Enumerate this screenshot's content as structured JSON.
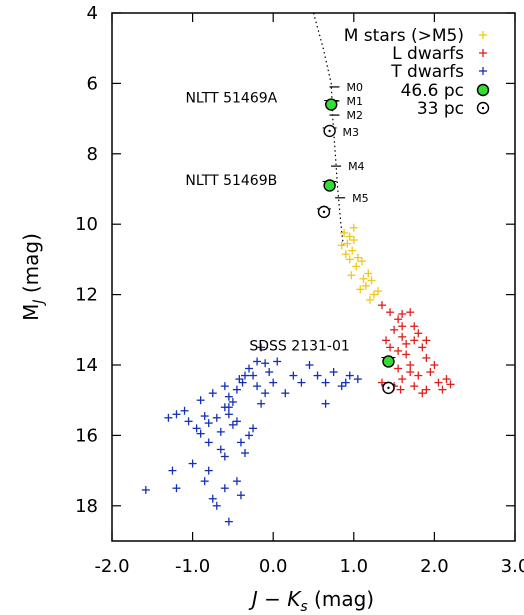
{
  "chart_data": {
    "type": "scatter",
    "xlabel": {
      "main": "J − K",
      "sub": "s",
      "tail": " (mag)"
    },
    "ylabel": {
      "main": "M",
      "sub": "J",
      "tail": " (mag)"
    },
    "xlim": [
      -2.0,
      3.0
    ],
    "ylim": [
      19.0,
      4.0
    ],
    "y_inverted": true,
    "xticks": [
      -2.0,
      -1.0,
      0.0,
      1.0,
      2.0,
      3.0
    ],
    "xtick_labels": [
      "-2.0",
      "-1.0",
      "0.0",
      "1.0",
      "2.0",
      "3.0"
    ],
    "yticks": [
      4,
      6,
      8,
      10,
      12,
      14,
      16,
      18
    ],
    "ytick_labels": [
      "4",
      "6",
      "8",
      "10",
      "12",
      "14",
      "16",
      "18"
    ],
    "grid": false,
    "legend_position": "top-right",
    "legend": [
      {
        "label": "M stars (>M5)",
        "marker": "plus",
        "color": "#f2c811"
      },
      {
        "label": "L dwarfs",
        "marker": "plus",
        "color": "#e0201b"
      },
      {
        "label": "T dwarfs",
        "marker": "plus",
        "color": "#1530b8"
      },
      {
        "label": "46.6 pc",
        "marker": "filled-circle",
        "color": "#33dd33"
      },
      {
        "label": "33 pc",
        "marker": "open-circle-dot",
        "color": "#000000"
      }
    ],
    "sequence_line": [
      [
        0.5,
        4.0
      ],
      [
        0.62,
        5.0
      ],
      [
        0.72,
        6.0
      ],
      [
        0.74,
        7.0
      ],
      [
        0.77,
        8.0
      ],
      [
        0.8,
        9.0
      ],
      [
        0.84,
        10.0
      ],
      [
        0.87,
        10.6
      ]
    ],
    "spectral_marks": [
      {
        "label": "M0",
        "x": 0.76,
        "y": 6.1
      },
      {
        "label": "M1",
        "x": 0.76,
        "y": 6.5
      },
      {
        "label": "M2",
        "x": 0.76,
        "y": 6.9
      },
      {
        "label": "M4",
        "x": 0.78,
        "y": 8.35
      },
      {
        "label": "M5",
        "x": 0.83,
        "y": 9.25
      }
    ],
    "series": [
      {
        "name": "M stars (>M5)",
        "color": "#f2c811",
        "points": [
          [
            0.88,
            10.25
          ],
          [
            0.92,
            10.55
          ],
          [
            0.95,
            10.35
          ],
          [
            0.98,
            10.75
          ],
          [
            1.0,
            10.45
          ],
          [
            0.9,
            10.85
          ],
          [
            0.85,
            10.6
          ],
          [
            1.05,
            10.95
          ],
          [
            1.03,
            11.2
          ],
          [
            0.97,
            11.45
          ],
          [
            1.1,
            11.05
          ],
          [
            1.12,
            11.55
          ],
          [
            1.18,
            11.4
          ],
          [
            1.15,
            11.75
          ],
          [
            1.22,
            11.6
          ],
          [
            1.08,
            11.85
          ],
          [
            1.25,
            12.0
          ],
          [
            1.2,
            12.15
          ],
          [
            1.3,
            11.9
          ],
          [
            1.0,
            10.1
          ],
          [
            0.95,
            11.0
          ]
        ]
      },
      {
        "name": "L dwarfs",
        "color": "#e0201b",
        "points": [
          [
            1.35,
            12.3
          ],
          [
            1.45,
            12.5
          ],
          [
            1.55,
            12.7
          ],
          [
            1.6,
            12.55
          ],
          [
            1.7,
            12.5
          ],
          [
            1.75,
            12.9
          ],
          [
            1.5,
            13.0
          ],
          [
            1.4,
            13.3
          ],
          [
            1.6,
            13.2
          ],
          [
            1.8,
            13.1
          ],
          [
            1.85,
            13.5
          ],
          [
            1.9,
            13.3
          ],
          [
            1.65,
            13.7
          ],
          [
            1.55,
            13.6
          ],
          [
            1.45,
            13.9
          ],
          [
            1.7,
            14.0
          ],
          [
            1.95,
            14.2
          ],
          [
            2.0,
            14.0
          ],
          [
            1.8,
            14.3
          ],
          [
            1.6,
            14.4
          ],
          [
            1.5,
            14.6
          ],
          [
            1.75,
            14.6
          ],
          [
            1.9,
            14.7
          ],
          [
            2.05,
            14.5
          ],
          [
            2.15,
            14.4
          ],
          [
            2.2,
            14.55
          ],
          [
            1.85,
            14.8
          ],
          [
            1.7,
            14.2
          ],
          [
            1.55,
            14.1
          ],
          [
            1.65,
            13.4
          ],
          [
            1.75,
            13.3
          ],
          [
            1.9,
            13.8
          ],
          [
            1.6,
            12.9
          ],
          [
            1.45,
            13.5
          ],
          [
            1.35,
            14.5
          ],
          [
            1.58,
            14.7
          ],
          [
            2.1,
            14.7
          ]
        ]
      },
      {
        "name": "T dwarfs",
        "color": "#1530b8",
        "points": [
          [
            -1.58,
            17.55
          ],
          [
            -1.25,
            17.0
          ],
          [
            -1.2,
            17.5
          ],
          [
            -1.0,
            16.8
          ],
          [
            -0.85,
            17.3
          ],
          [
            -0.8,
            17.0
          ],
          [
            -0.75,
            17.8
          ],
          [
            -0.7,
            18.0
          ],
          [
            -0.55,
            18.45
          ],
          [
            -0.6,
            17.5
          ],
          [
            -0.45,
            17.3
          ],
          [
            -0.4,
            17.7
          ],
          [
            -1.3,
            15.5
          ],
          [
            -1.2,
            15.4
          ],
          [
            -1.1,
            15.3
          ],
          [
            -1.05,
            15.6
          ],
          [
            -0.95,
            15.8
          ],
          [
            -0.9,
            15.95
          ],
          [
            -0.85,
            15.45
          ],
          [
            -0.8,
            15.65
          ],
          [
            -0.7,
            15.5
          ],
          [
            -0.65,
            15.9
          ],
          [
            -0.6,
            15.2
          ],
          [
            -0.55,
            15.4
          ],
          [
            -0.5,
            15.7
          ],
          [
            -0.45,
            15.6
          ],
          [
            -0.4,
            16.2
          ],
          [
            -0.35,
            16.5
          ],
          [
            -0.3,
            16.0
          ],
          [
            -0.25,
            15.8
          ],
          [
            -0.9,
            15.0
          ],
          [
            -0.75,
            14.8
          ],
          [
            -0.6,
            14.6
          ],
          [
            -0.55,
            14.9
          ],
          [
            -0.5,
            15.05
          ],
          [
            -0.45,
            14.7
          ],
          [
            -0.42,
            14.4
          ],
          [
            -0.38,
            14.5
          ],
          [
            -0.3,
            14.1
          ],
          [
            -0.25,
            14.3
          ],
          [
            -0.2,
            14.6
          ],
          [
            -0.15,
            15.1
          ],
          [
            -0.1,
            14.8
          ],
          [
            -0.05,
            14.2
          ],
          [
            0.0,
            14.5
          ],
          [
            -0.2,
            13.9
          ],
          [
            -0.1,
            13.95
          ],
          [
            0.05,
            13.9
          ],
          [
            0.15,
            14.8
          ],
          [
            0.25,
            14.3
          ],
          [
            0.35,
            14.5
          ],
          [
            0.45,
            14.0
          ],
          [
            0.55,
            14.3
          ],
          [
            0.65,
            14.5
          ],
          [
            0.75,
            14.2
          ],
          [
            0.85,
            14.6
          ],
          [
            0.95,
            14.3
          ],
          [
            1.05,
            14.4
          ],
          [
            0.65,
            15.1
          ],
          [
            0.9,
            14.5
          ],
          [
            -0.35,
            14.3
          ],
          [
            -0.65,
            16.4
          ],
          [
            -0.6,
            16.6
          ],
          [
            -0.8,
            16.2
          ],
          [
            -0.15,
            13.5
          ],
          [
            -0.55,
            15.2
          ]
        ]
      }
    ],
    "highlight_46": [
      [
        0.72,
        6.6
      ],
      [
        0.7,
        8.9
      ],
      [
        1.43,
        13.9
      ]
    ],
    "highlight_33": [
      [
        0.7,
        7.35
      ],
      [
        0.63,
        9.65
      ],
      [
        1.43,
        14.65
      ]
    ],
    "annotations": [
      {
        "text": "NLTT 51469A",
        "x": 0.05,
        "y": 6.4
      },
      {
        "text": "NLTT 51469B",
        "x": 0.05,
        "y": 8.75
      },
      {
        "text": "SDSS 2131-01",
        "x": 0.95,
        "y": 13.45
      },
      {
        "text": "M3",
        "x": 0.86,
        "y": 7.35
      }
    ]
  }
}
